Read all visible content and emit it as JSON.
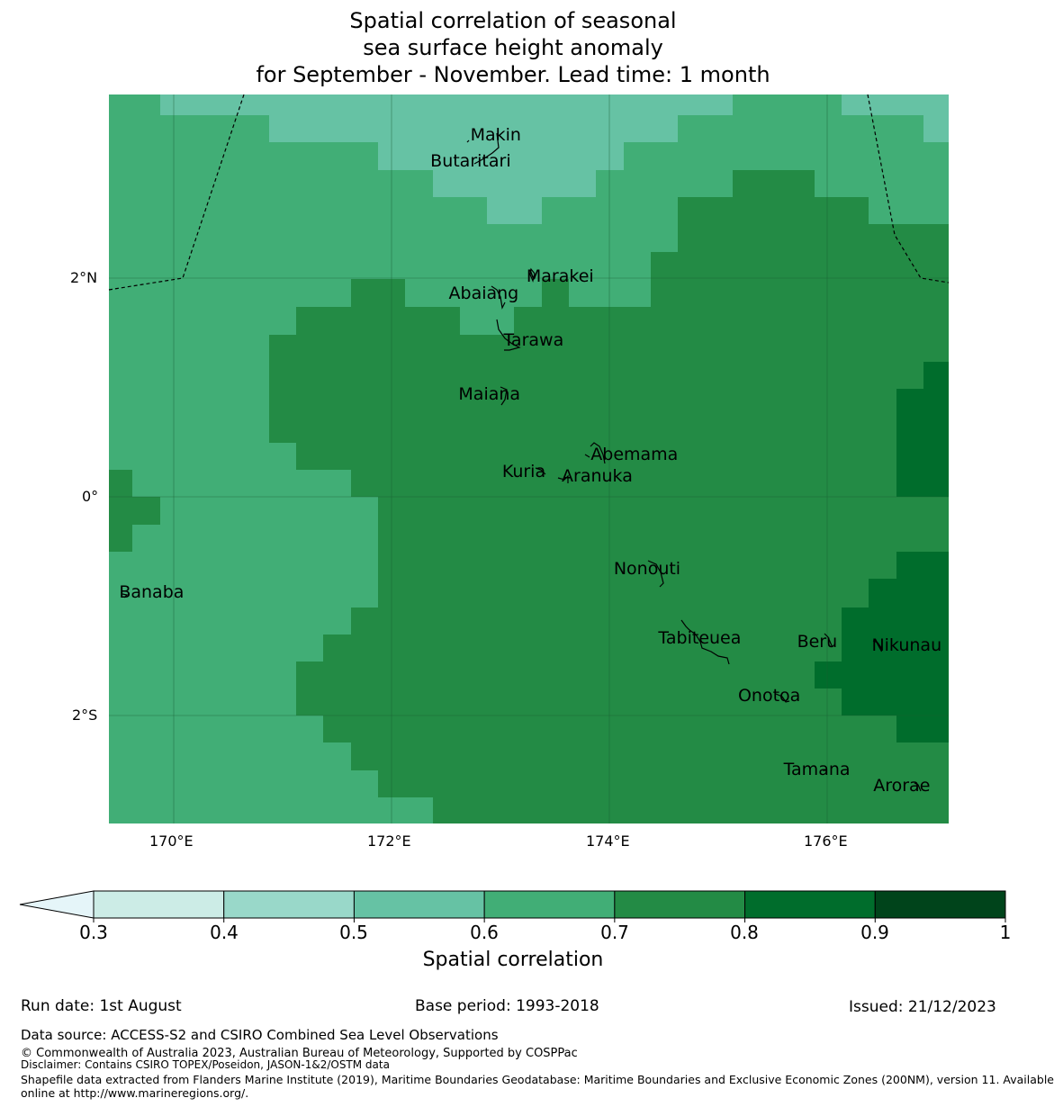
{
  "title": {
    "line1": "Spatial correlation of seasonal",
    "line2": "sea surface height anomaly",
    "line3": "for September - November. Lead time: 1 month"
  },
  "axes": {
    "lon_labels": [
      "170°E",
      "172°E",
      "174°E",
      "176°E"
    ],
    "lat_labels": [
      "2°N",
      "0°",
      "2°S"
    ],
    "lon_values": [
      170,
      172,
      174,
      176
    ],
    "lat_values": [
      2,
      0,
      -2
    ],
    "lon_range": [
      169.4,
      177.1
    ],
    "lat_range": [
      -3.0,
      3.7
    ]
  },
  "islands": [
    {
      "name": "Makin",
      "lon": 172.98,
      "lat": 3.3
    },
    {
      "name": "Butaritari",
      "lon": 172.77,
      "lat": 3.06
    },
    {
      "name": "Marakei",
      "lon": 173.28,
      "lat": 2.01
    },
    {
      "name": "Abaiang",
      "lon": 172.93,
      "lat": 1.85
    },
    {
      "name": "Tarawa",
      "lon": 173.07,
      "lat": 1.42
    },
    {
      "name": "Maiana",
      "lon": 173.02,
      "lat": 0.93
    },
    {
      "name": "Abemama",
      "lon": 173.87,
      "lat": 0.38
    },
    {
      "name": "Kuria",
      "lon": 173.42,
      "lat": 0.22
    },
    {
      "name": "Aranuka",
      "lon": 173.62,
      "lat": 0.18
    },
    {
      "name": "Nonouti",
      "lon": 174.42,
      "lat": -0.67
    },
    {
      "name": "Banaba",
      "lon": 169.54,
      "lat": -0.88
    },
    {
      "name": "Tabiteuea",
      "lon": 174.83,
      "lat": -1.3
    },
    {
      "name": "Beru",
      "lon": 175.98,
      "lat": -1.33
    },
    {
      "name": "Nikunau",
      "lon": 176.45,
      "lat": -1.37
    },
    {
      "name": "Onotoa",
      "lon": 175.57,
      "lat": -1.83
    },
    {
      "name": "Tamana",
      "lon": 175.98,
      "lat": -2.5
    },
    {
      "name": "Arorae",
      "lon": 176.82,
      "lat": -2.65
    }
  ],
  "colorbar": {
    "ticks": [
      "0.3",
      "0.4",
      "0.5",
      "0.6",
      "0.7",
      "0.8",
      "0.9",
      "1"
    ],
    "colors": [
      "#ccece6",
      "#99d8c9",
      "#66c2a4",
      "#41ae76",
      "#238b45",
      "#006d2c",
      "#00441b"
    ],
    "under_color": "#e5f5f9",
    "label": "Spatial correlation"
  },
  "grid_classes": {
    "note_class_to_color": {
      "3": "#66c2a4",
      "4": "#41ae76",
      "5": "#238b45",
      "6": "#006d2c"
    }
  },
  "footer": {
    "run_date": "Run date: 1st August",
    "base_period": "Base period: 1993-2018",
    "issued": "Issued: 21/12/2023",
    "data_source": "Data source: ACCESS-S2 and CSIRO Combined Sea Level Observations",
    "copyright": "© Commonwealth of Australia 2023, Australian Bureau of Meteorology, Supported by COSPPac",
    "disclaimer": "Disclaimer: Contains CSIRO TOPEX/Poseidon, JASON-1&2/OSTM data",
    "shapefile1": "Shapefile data extracted from Flanders Marine Institute (2019), Maritime Boundaries Geodatabase: Maritime Boundaries and Exclusive Economic Zones (200NM), version 11. Available",
    "shapefile2": "online at http://www.marineregions.org/."
  }
}
